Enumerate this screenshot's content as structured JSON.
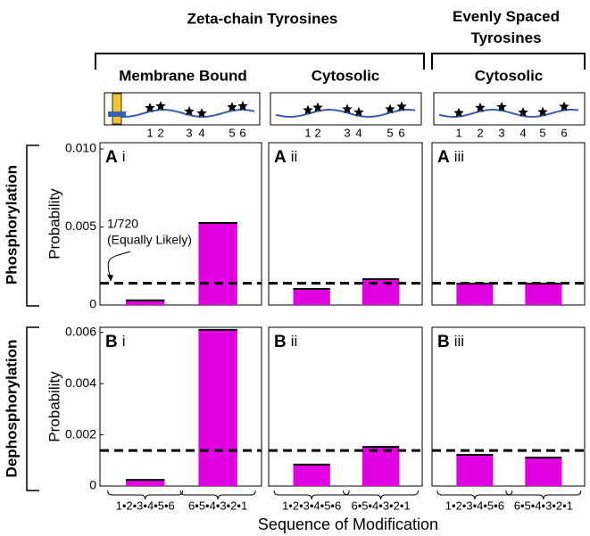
{
  "header": {
    "groups": [
      "Zeta-chain Tyrosines",
      "Evenly Spaced Tyrosines"
    ],
    "columns": [
      "Membrane Bound",
      "Cytosolic",
      "Cytosolic"
    ]
  },
  "rows": [
    "Phosphorylation",
    "Dephosphorylation"
  ],
  "xlabel": "Sequence of Modification",
  "schematics": [
    {
      "labels": [
        "1",
        "2",
        "3",
        "4",
        "5",
        "6"
      ]
    },
    {
      "labels": [
        "1",
        "2",
        "3",
        "4",
        "5",
        "6"
      ]
    },
    {
      "labels": [
        "1",
        "2",
        "3",
        "4",
        "5",
        "6"
      ]
    }
  ],
  "chart_data": [
    {
      "type": "bar",
      "panel": "A",
      "sub": "i",
      "ylabel": "Probability",
      "categories": [
        null,
        null
      ],
      "values": [
        0.0003,
        0.00526
      ],
      "color": "#e000e0",
      "ylim": [
        0,
        0.0104
      ],
      "yticks": [
        0,
        0.005,
        {
          "value": 0.01,
          "label": "0.010"
        }
      ],
      "hline": 0.00139,
      "annotation": [
        "1/720",
        "(Equally Likely)"
      ]
    },
    {
      "type": "bar",
      "panel": "A",
      "sub": "ii",
      "categories": [
        null,
        null
      ],
      "values": [
        0.00103,
        0.00166
      ],
      "color": "#e000e0",
      "ylim": [
        0,
        0.0104
      ],
      "hline": 0.00139
    },
    {
      "type": "bar",
      "panel": "A",
      "sub": "iii",
      "categories": [
        null,
        null
      ],
      "values": [
        0.00137,
        0.00137
      ],
      "color": "#e000e0",
      "ylim": [
        0,
        0.0104
      ],
      "hline": 0.00139
    },
    {
      "type": "bar",
      "panel": "B",
      "sub": "i",
      "ylabel": "Probability",
      "categories": [
        "1•2•3•4•5•6",
        "6•5•4•3•2•1"
      ],
      "values": [
        0.00024,
        0.0061
      ],
      "color": "#e000e0",
      "ylim": [
        0,
        0.0062
      ],
      "yticks": [
        0,
        0.002,
        0.004,
        0.006
      ],
      "hline": 0.00139
    },
    {
      "type": "bar",
      "panel": "B",
      "sub": "ii",
      "categories": [
        "1•2•3•4•5•6",
        "6•5•4•3•2•1"
      ],
      "values": [
        0.00084,
        0.00153
      ],
      "color": "#e000e0",
      "ylim": [
        0,
        0.0062
      ],
      "hline": 0.00139
    },
    {
      "type": "bar",
      "panel": "B",
      "sub": "iii",
      "categories": [
        "1•2•3•4•5•6",
        "6•5•4•3•2•1"
      ],
      "values": [
        0.00122,
        0.00111
      ],
      "color": "#e000e0",
      "ylim": [
        0,
        0.0062
      ],
      "hline": 0.00139
    }
  ]
}
